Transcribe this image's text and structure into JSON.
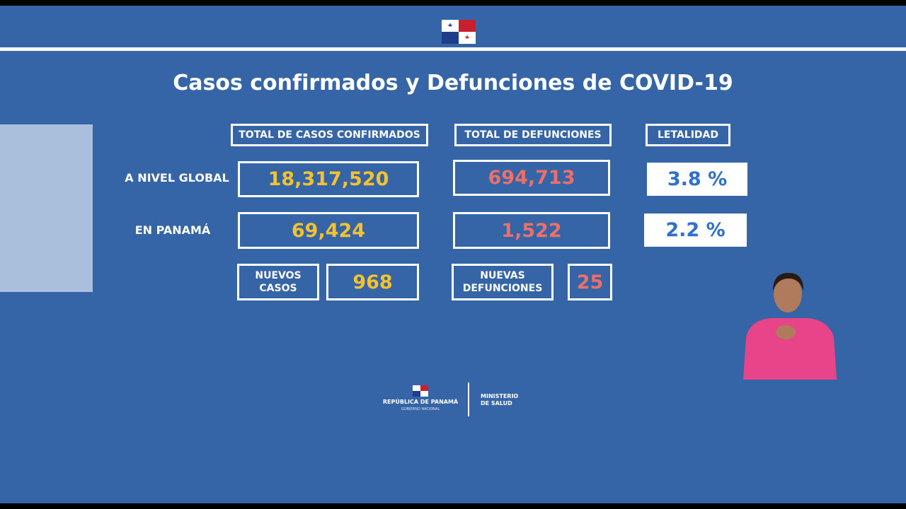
{
  "header": {
    "title": "Casos confirmados y Defunciones de COVID-19"
  },
  "table": {
    "columns": [
      "TOTAL DE CASOS CONFIRMADOS",
      "TOTAL DE DEFUNCIONES",
      "LETALIDAD"
    ],
    "rows": [
      {
        "label": "A NIVEL GLOBAL",
        "cases": "18,317,520",
        "deaths": "694,713",
        "lethality": "3.8 %"
      },
      {
        "label": "EN PANAMÁ",
        "cases": "69,424",
        "deaths": "1,522",
        "lethality": "2.2 %"
      }
    ]
  },
  "new": {
    "cases_label": "NUEVOS CASOS",
    "cases": "968",
    "deaths_label": "NUEVAS DEFUNCIONES",
    "deaths": "25"
  },
  "footer": {
    "republic": "REPÚBLICA DE PANAMÁ",
    "government": "GOBIERNO NACIONAL",
    "ministry": "MINISTERIO DE SALUD"
  }
}
